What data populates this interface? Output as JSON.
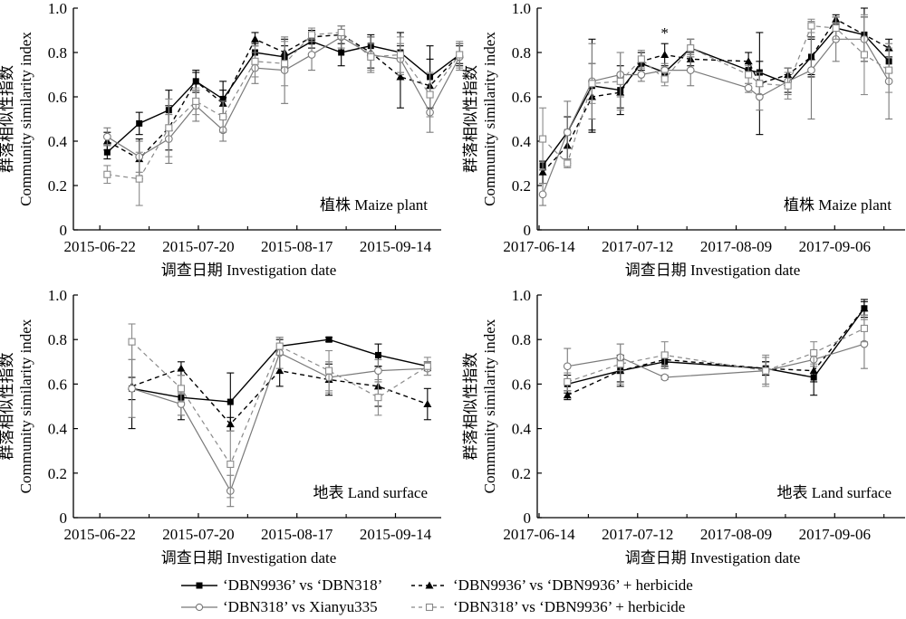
{
  "chart_data": [
    {
      "type": "line",
      "panel": "top-left",
      "annotation": "植株 Maize plant",
      "xlabel": "调查日期 Investigation date",
      "ylabel_cn": "群落相似性指数",
      "ylabel_en": "Community similarity index",
      "ylim": [
        0,
        1.0
      ],
      "yticks": [
        "0",
        "0.2",
        "0.4",
        "0.6",
        "0.8",
        "1.0"
      ],
      "xtick_labels": [
        "2015-06-22",
        "2015-07-20",
        "2015-08-17",
        "2015-09-14"
      ],
      "x_index_range": [
        0,
        14
      ],
      "xtick_label_positions": [
        1,
        5,
        9,
        13
      ],
      "minor_ticks": [
        3,
        7,
        11
      ],
      "point_x": [
        1.3,
        2.6,
        3.8,
        4.9,
        6.0,
        7.3,
        8.5,
        9.6,
        10.8,
        12.0,
        13.2,
        14.4,
        15.6
      ],
      "series": [
        {
          "name": "‘DBN9936’ vs ‘DBN318’",
          "style": "black-solid-square",
          "values": [
            0.35,
            0.48,
            0.54,
            0.67,
            0.59,
            0.8,
            0.78,
            0.85,
            0.8,
            0.83,
            0.8,
            0.69,
            0.79
          ],
          "errors": [
            0.03,
            0.05,
            0.09,
            0.05,
            0.08,
            0.04,
            0.05,
            0.03,
            0.06,
            0.05,
            0.09,
            0.14,
            0.04
          ]
        },
        {
          "name": "‘DBN9936’ vs ‘DBN9936’ + herbicide",
          "style": "black-dashed-triangle",
          "values": [
            0.4,
            0.32,
            0.46,
            0.67,
            0.57,
            0.86,
            0.8,
            0.87,
            0.88,
            0.8,
            0.69,
            0.65,
            0.79
          ],
          "errors": [
            0.04,
            0.09,
            0.1,
            0.04,
            0.06,
            0.03,
            0.06,
            0.03,
            0.04,
            0.07,
            0.14,
            0.12,
            0.05
          ]
        },
        {
          "name": "‘DBN318’ vs Xianyu335",
          "style": "gray-solid-circle",
          "values": [
            0.42,
            0.33,
            0.41,
            0.56,
            0.45,
            0.73,
            0.72,
            0.79,
            0.87,
            0.79,
            0.77,
            0.53,
            0.78
          ],
          "errors": [
            0.04,
            0.07,
            0.11,
            0.07,
            0.05,
            0.07,
            0.15,
            0.07,
            0.05,
            0.08,
            0.07,
            0.09,
            0.06
          ]
        },
        {
          "name": "‘DBN318’ vs ‘DBN9936’ + herbicide",
          "style": "gray-dashed-square",
          "values": [
            0.25,
            0.23,
            0.46,
            0.58,
            0.51,
            0.76,
            0.75,
            0.88,
            0.89,
            0.78,
            0.79,
            0.61,
            0.79
          ],
          "errors": [
            0.04,
            0.12,
            0.13,
            0.06,
            0.07,
            0.07,
            0.1,
            0.03,
            0.03,
            0.06,
            0.08,
            0.1,
            0.06
          ]
        }
      ]
    },
    {
      "type": "line",
      "panel": "top-right",
      "annotation": "植株 Maize plant",
      "xlabel": "调查日期 Investigation date",
      "ylabel_cn": "群落相似性指数",
      "ylabel_en": "Community similarity index",
      "ylim": [
        0,
        1.0
      ],
      "yticks": [
        "0",
        "0.2",
        "0.4",
        "0.6",
        "0.8",
        "1.0"
      ],
      "xtick_labels": [
        "2017-06-14",
        "2017-07-12",
        "2017-08-09",
        "2017-09-06"
      ],
      "x_index_range": [
        0,
        14
      ],
      "xtick_label_positions": [
        0,
        4,
        8,
        12
      ],
      "minor_ticks": [
        2,
        6,
        10,
        14
      ],
      "point_x": [
        0.15,
        1.15,
        2.15,
        3.3,
        4.15,
        5.1,
        6.15,
        8.5,
        8.95,
        10.1,
        11.05,
        12.05,
        13.2,
        14.2
      ],
      "star_annotation": {
        "label": "*",
        "point_index": 5
      },
      "series": [
        {
          "name": "‘DBN9936’ vs ‘DBN318’",
          "style": "black-solid-square",
          "values": [
            0.29,
            0.44,
            0.65,
            0.63,
            0.75,
            0.71,
            0.82,
            0.72,
            0.71,
            0.66,
            0.78,
            0.91,
            0.88,
            0.76
          ],
          "errors": [
            0.02,
            0.07,
            0.21,
            0.11,
            0.05,
            0.02,
            0.04,
            0.03,
            0.05,
            0.04,
            0.08,
            0.05,
            0.12,
            0.05
          ]
        },
        {
          "name": "‘DBN9936’ vs ‘DBN9936’ + herbicide",
          "style": "black-dashed-triangle",
          "values": [
            0.26,
            0.38,
            0.6,
            0.62,
            0.76,
            0.79,
            0.77,
            0.76,
            0.66,
            0.7,
            0.78,
            0.95,
            0.88,
            0.82
          ],
          "errors": [
            0.05,
            0.06,
            0.15,
            0.07,
            0.04,
            0.05,
            0.03,
            0.04,
            0.23,
            0.03,
            0.09,
            0.02,
            0.08,
            0.04
          ]
        },
        {
          "name": "‘DBN318’ vs Xianyu335",
          "style": "gray-solid-circle",
          "values": [
            0.16,
            0.44,
            0.67,
            0.7,
            0.7,
            0.72,
            0.72,
            0.64,
            0.6,
            0.67,
            0.72,
            0.86,
            0.86,
            0.67
          ],
          "errors": [
            0.05,
            0.14,
            0.17,
            0.1,
            0.03,
            0.03,
            0.07,
            0.02,
            0.06,
            0.06,
            0.22,
            0.1,
            0.1,
            0.17
          ]
        },
        {
          "name": "‘DBN318’ vs ‘DBN9936’ + herbicide",
          "style": "gray-dashed-square",
          "values": [
            0.41,
            0.3,
            0.66,
            0.67,
            0.77,
            0.68,
            0.82,
            0.7,
            0.66,
            0.65,
            0.92,
            0.91,
            0.79,
            0.72
          ],
          "errors": [
            0.14,
            0.02,
            0.09,
            0.13,
            0.04,
            0.03,
            0.04,
            0.04,
            0.05,
            0.06,
            0.03,
            0.05,
            0.18,
            0.1
          ]
        }
      ]
    },
    {
      "type": "line",
      "panel": "bottom-left",
      "annotation": "地表 Land surface",
      "xlabel": "调查日期 Investigation date",
      "ylabel_cn": "群落相似性指数",
      "ylabel_en": "Community similarity index",
      "ylim": [
        0,
        1.0
      ],
      "yticks": [
        "0",
        "0.2",
        "0.4",
        "0.6",
        "0.8",
        "1.0"
      ],
      "xtick_labels": [
        "2015-06-22",
        "2015-07-20",
        "2015-08-17",
        "2015-09-14"
      ],
      "x_index_range": [
        0,
        14
      ],
      "xtick_label_positions": [
        1,
        5,
        9,
        13
      ],
      "minor_ticks": [
        3,
        7,
        11
      ],
      "point_x": [
        2.3,
        4.3,
        6.3,
        8.3,
        10.3,
        12.3,
        14.3
      ],
      "series": [
        {
          "name": "‘DBN9936’ vs ‘DBN318’",
          "style": "black-solid-square",
          "values": [
            0.58,
            0.54,
            0.52,
            0.77,
            0.8,
            0.73,
            0.68
          ],
          "errors": [
            0.05,
            0.1,
            0.13,
            0.03,
            0.01,
            0.05,
            0.02
          ]
        },
        {
          "name": "‘DBN9936’ vs ‘DBN9936’ + herbicide",
          "style": "black-dashed-triangle",
          "values": [
            0.59,
            0.67,
            0.42,
            0.66,
            0.62,
            0.59,
            0.51
          ],
          "errors": [
            0.19,
            0.03,
            0.03,
            0.07,
            0.07,
            0.09,
            0.07
          ]
        },
        {
          "name": "‘DBN318’ vs Xianyu335",
          "style": "gray-solid-circle",
          "values": [
            0.58,
            0.51,
            0.12,
            0.74,
            0.63,
            0.66,
            0.67
          ],
          "errors": [
            0.13,
            0.05,
            0.07,
            0.07,
            0.07,
            0.05,
            0.03
          ]
        },
        {
          "name": "‘DBN318’ vs ‘DBN9936’ + herbicide",
          "style": "gray-dashed-square",
          "values": [
            0.79,
            0.58,
            0.24,
            0.77,
            0.66,
            0.54,
            0.68
          ],
          "errors": [
            0.08,
            0.06,
            0.15,
            0.04,
            0.09,
            0.08,
            0.04
          ]
        }
      ]
    },
    {
      "type": "line",
      "panel": "bottom-right",
      "annotation": "地表 Land surface",
      "xlabel": "调查日期 Investigation date",
      "ylabel_cn": "群落相似性指数",
      "ylabel_en": "Community similarity index",
      "ylim": [
        0,
        1.0
      ],
      "yticks": [
        "0",
        "0.2",
        "0.4",
        "0.6",
        "0.8",
        "1.0"
      ],
      "xtick_labels": [
        "2017-06-14",
        "2017-07-12",
        "2017-08-09",
        "2017-09-06"
      ],
      "x_index_range": [
        0,
        14
      ],
      "xtick_label_positions": [
        0,
        4,
        8,
        12
      ],
      "minor_ticks": [
        2,
        6,
        10,
        14
      ],
      "point_x": [
        1.15,
        3.3,
        5.1,
        9.2,
        11.15,
        13.2
      ],
      "series": [
        {
          "name": "‘DBN9936’ vs ‘DBN318’",
          "style": "black-solid-square",
          "values": [
            0.6,
            0.66,
            0.7,
            0.67,
            0.63,
            0.94
          ],
          "errors": [
            0.04,
            0.07,
            0.03,
            0.03,
            0.08,
            0.04
          ]
        },
        {
          "name": "‘DBN9936’ vs ‘DBN9936’ + herbicide",
          "style": "black-dashed-triangle",
          "values": [
            0.55,
            0.66,
            0.71,
            0.67,
            0.66,
            0.94
          ],
          "errors": [
            0.02,
            0.05,
            0.03,
            0.03,
            0.05,
            0.03
          ]
        },
        {
          "name": "‘DBN318’ vs Xianyu335",
          "style": "gray-solid-circle",
          "values": [
            0.68,
            0.72,
            0.63,
            0.66,
            0.71,
            0.78
          ],
          "errors": [
            0.08,
            0.06,
            0.01,
            0.06,
            0.03,
            0.11
          ]
        },
        {
          "name": "‘DBN318’ vs ‘DBN9936’ + herbicide",
          "style": "gray-dashed-square",
          "values": [
            0.61,
            0.69,
            0.73,
            0.66,
            0.74,
            0.85
          ],
          "errors": [
            0.04,
            0.09,
            0.06,
            0.07,
            0.05,
            0.06
          ]
        }
      ]
    }
  ],
  "legend": {
    "items": [
      {
        "label": "‘DBN9936’ vs ‘DBN318’",
        "style": "black-solid-square"
      },
      {
        "label": "‘DBN9936’ vs ‘DBN9936’ + herbicide",
        "style": "black-dashed-triangle"
      },
      {
        "label": "‘DBN318’ vs Xianyu335",
        "style": "gray-solid-circle"
      },
      {
        "label": "‘DBN318’ vs ‘DBN9936’ + herbicide",
        "style": "gray-dashed-square"
      }
    ]
  }
}
